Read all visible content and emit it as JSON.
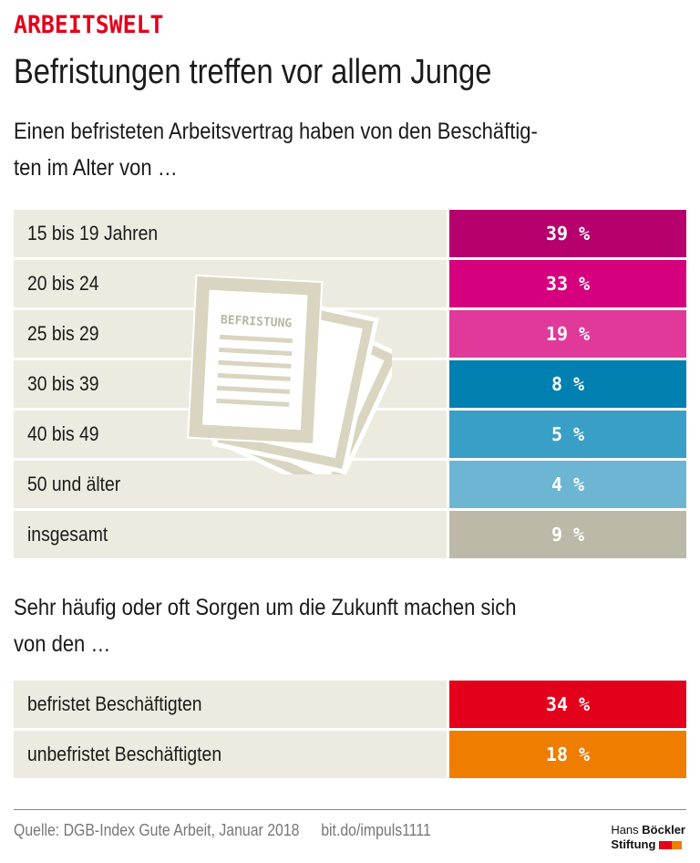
{
  "kicker": "ARBEITSWELT",
  "headline": "Befristungen treffen vor allem Junge",
  "subtitle1_line1": "Einen befristeten Arbeitsvertrag haben von den Beschäftig-",
  "subtitle1_line2": "ten im Alter von …",
  "illustration_label": "BEFRISTUNG",
  "subtitle2_line1": "Sehr häufig oder oft Sorgen um die Zukunft machen sich",
  "subtitle2_line2": "von den …",
  "chart_data": [
    {
      "type": "table",
      "title": "Einen befristeten Arbeitsvertrag haben von den Beschäftigten im Alter von …",
      "categories": [
        "15 bis 19 Jahren",
        "20 bis 24",
        "25 bis 29",
        "30 bis 39",
        "40 bis 49",
        "50 und älter",
        "insgesamt"
      ],
      "values": [
        39,
        33,
        19,
        8,
        5,
        4,
        9
      ],
      "labels": [
        "39 %",
        "33 %",
        "19 %",
        "8 %",
        "5 %",
        "4 %",
        "9 %"
      ],
      "colors": [
        "#b5006e",
        "#d6007e",
        "#e0399a",
        "#0080b0",
        "#3a9fc6",
        "#6cb6d4",
        "#bcb9a8"
      ]
    },
    {
      "type": "table",
      "title": "Sehr häufig oder oft Sorgen um die Zukunft machen sich von den …",
      "categories": [
        "befristet Beschäftigten",
        "unbefristet Beschäftigten"
      ],
      "values": [
        34,
        18
      ],
      "labels": [
        "34 %",
        "18 %"
      ],
      "colors": [
        "#e3001b",
        "#ef7d00"
      ]
    }
  ],
  "footer": {
    "source": "Quelle: DGB-Index Gute Arbeit, Januar 2018",
    "link": "bit.do/impuls1111",
    "logo_line1a": "Hans",
    "logo_line1b": "Böckler",
    "logo_line2": "Stiftung"
  }
}
